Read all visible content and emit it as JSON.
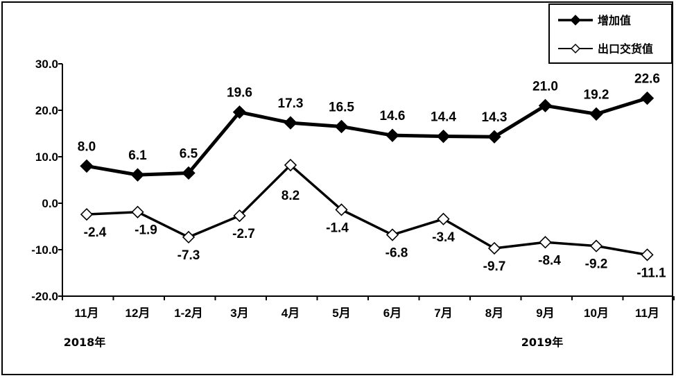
{
  "chart_data": {
    "type": "line",
    "categories": [
      "11月",
      "12月",
      "1-2月",
      "3月",
      "4月",
      "5月",
      "6月",
      "7月",
      "8月",
      "9月",
      "10月",
      "11月"
    ],
    "year_labels": [
      "2018年",
      "2019年"
    ],
    "series": [
      {
        "name": "增加值",
        "values": [
          8.0,
          6.1,
          6.5,
          19.6,
          17.3,
          16.5,
          14.6,
          14.4,
          14.3,
          21.0,
          19.2,
          22.6
        ],
        "value_labels": [
          "8.0",
          "6.1",
          "6.5",
          "19.6",
          "17.3",
          "16.5",
          "14.6",
          "14.4",
          "14.3",
          "21.0",
          "19.2",
          "22.6"
        ],
        "marker": "filled-diamond",
        "color": "#000000"
      },
      {
        "name": "出口交货值",
        "values": [
          -2.4,
          -1.9,
          -7.3,
          -2.7,
          8.2,
          -1.4,
          -6.8,
          -3.4,
          -9.7,
          -8.4,
          -9.2,
          -11.1
        ],
        "value_labels": [
          "-2.4",
          "-1.9",
          "-7.3",
          "-2.7",
          "8.2",
          "-1.4",
          "-6.8",
          "-3.4",
          "-9.7",
          "-8.4",
          "-9.2",
          "-11.1"
        ],
        "marker": "hollow-diamond",
        "color": "#000000"
      }
    ],
    "y_ticks": [
      "30.0",
      "20.0",
      "10.0",
      "0.0",
      "-10.0",
      "-20.0"
    ],
    "ylim": [
      -20,
      30
    ],
    "grid": false,
    "legend_position": "top-right"
  }
}
